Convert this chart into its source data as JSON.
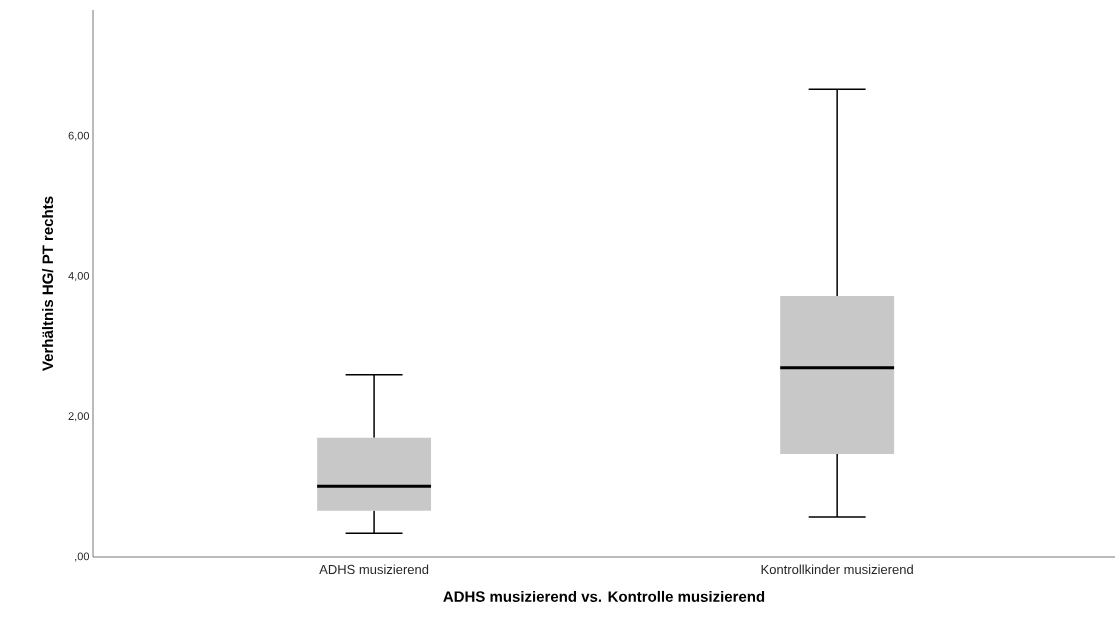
{
  "chart_data": {
    "type": "box",
    "xlabel": "ADHS musizierend vs. Kontrolle musizierend",
    "ylabel": "Verhältnis HG/ PT rechts",
    "categories": [
      "ADHS musizierend",
      "Kontrollkinder musizierend"
    ],
    "boxes": [
      {
        "low": 0.34,
        "q1": 0.66,
        "median": 1.01,
        "q3": 1.7,
        "high": 2.6
      },
      {
        "low": 0.57,
        "q1": 1.47,
        "median": 2.7,
        "q3": 3.72,
        "high": 6.67
      }
    ],
    "color": "#c8c8c8",
    "ylim": [
      0,
      7.8
    ],
    "yticks": [
      {
        "value": 0,
        "label": ",00"
      },
      {
        "value": 2,
        "label": "2,00"
      },
      {
        "value": 4,
        "label": "4,00"
      },
      {
        "value": 6,
        "label": "6,00"
      }
    ]
  }
}
